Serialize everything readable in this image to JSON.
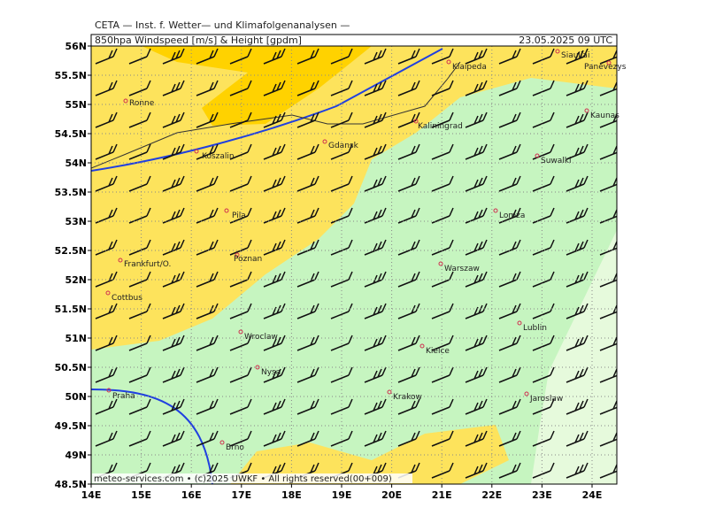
{
  "header": {
    "title": "CETA — Inst. f. Wetter— und Klimafolgenanalysen —",
    "product": "850hpa Windspeed [m/s] & Height [gpdm]",
    "valid": "23.05.2025 09 UTC"
  },
  "axes": {
    "lat_labels": [
      "56N",
      "55.5N",
      "55N",
      "54.5N",
      "54N",
      "53.5N",
      "53N",
      "52.5N",
      "52N",
      "51.5N",
      "51N",
      "50.5N",
      "50N",
      "49.5N",
      "49N",
      "48.5N"
    ],
    "lon_labels": [
      "14E",
      "15E",
      "16E",
      "17E",
      "18E",
      "19E",
      "20E",
      "21E",
      "22E",
      "23E",
      "24E"
    ]
  },
  "cities": [
    "Siauliai",
    "Panevezys",
    "Klaipeda",
    "Ronne",
    "Kaunas",
    "Kaliningrad",
    "Gdansk",
    "Koszalin",
    "Suwalki",
    "Pila",
    "Lomza",
    "Frankfurt/O.",
    "Poznan",
    "Warszaw",
    "Cottbus",
    "Lublin",
    "Wroclaw",
    "Kielce",
    "Nysa",
    "Praha",
    "Krakow",
    "Jaroslaw",
    "Brno"
  ],
  "footer": "meteo-services.com • (c)2025 UWKF • All rights reserved(00+009)"
}
